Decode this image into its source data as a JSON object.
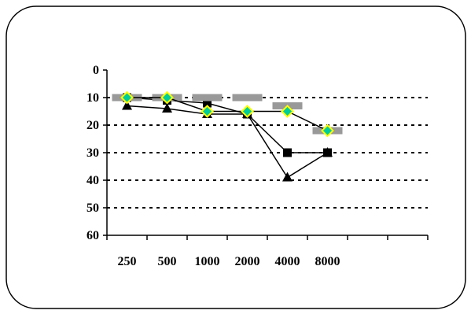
{
  "chart_data": {
    "type": "line",
    "categories": [
      "250",
      "500",
      "1000",
      "2000",
      "4000",
      "8000"
    ],
    "y_ticks": [
      "0",
      "10",
      "20",
      "30",
      "40",
      "50",
      "60"
    ],
    "ylim": [
      0,
      60
    ],
    "y_inverted": true,
    "x_slots": 8,
    "grid": "horizontal-dotted",
    "legend": "none",
    "title": "",
    "xlabel": "",
    "ylabel": "",
    "series": [
      {
        "marker": "square",
        "color": "#000000",
        "values": [
          10,
          11,
          12,
          16,
          30,
          30
        ]
      },
      {
        "marker": "triangle",
        "color": "#000000",
        "values": [
          13,
          14,
          16,
          16,
          39,
          30
        ]
      },
      {
        "marker": "dash",
        "color": "#999999",
        "values": [
          10,
          10,
          10,
          10,
          13,
          22
        ]
      },
      {
        "marker": "diamond",
        "color": "#00cc99",
        "edge": "#ffff00",
        "values": [
          10,
          10,
          15,
          15,
          15,
          22
        ]
      }
    ]
  }
}
